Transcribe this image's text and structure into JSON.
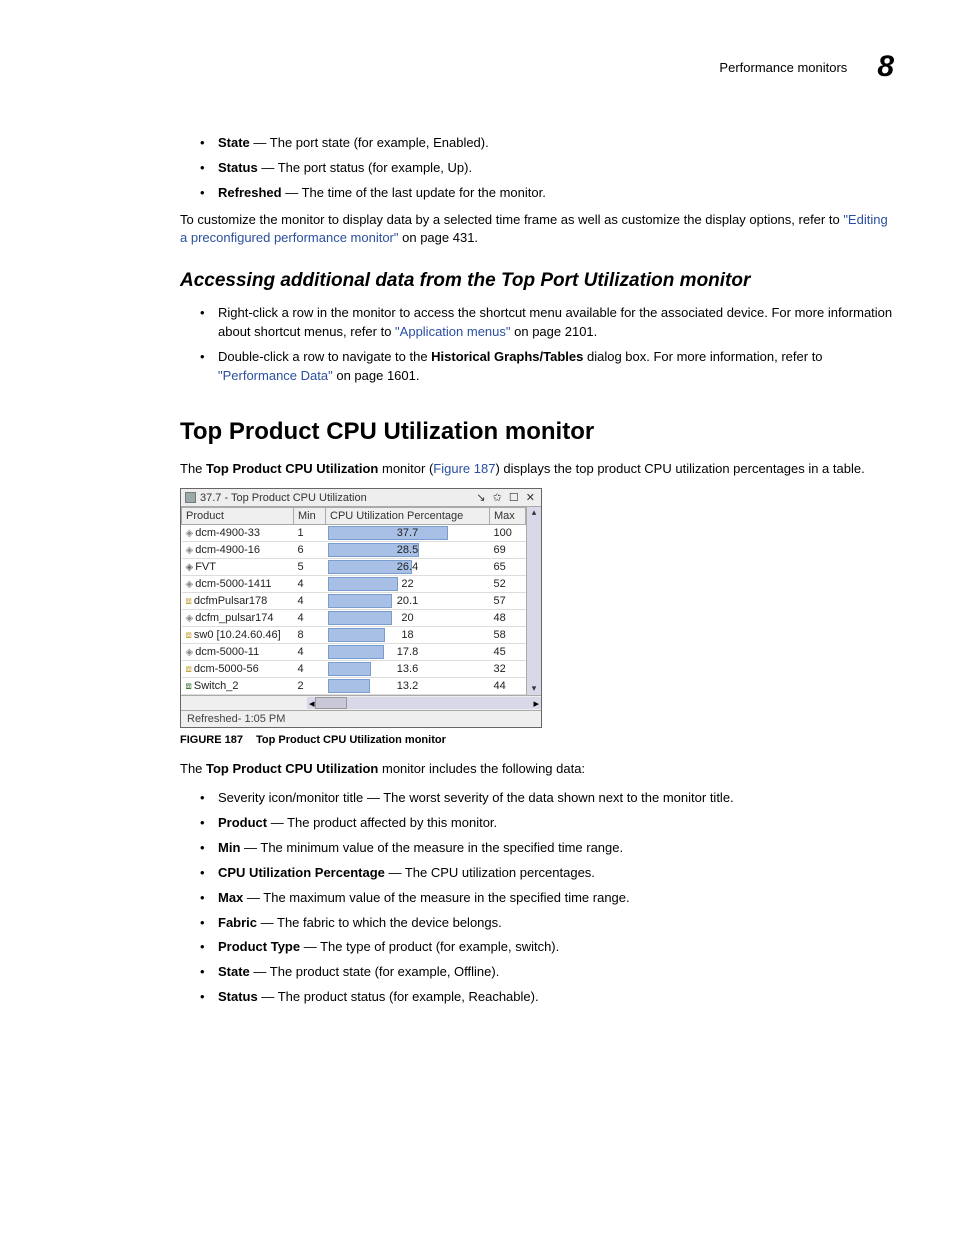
{
  "header": {
    "section_title": "Performance monitors",
    "chapter_num": "8"
  },
  "top_bullets": [
    {
      "term": "State",
      "def": " — The port state (for example, Enabled)."
    },
    {
      "term": "Status",
      "def": " — The port status (for example, Up)."
    },
    {
      "term": "Refreshed",
      "def": " — The time of the last update for the monitor."
    }
  ],
  "customize_para": {
    "pre": "To customize the monitor to display data by a selected time frame as well as customize the display options, refer to ",
    "link": "\"Editing a preconfigured performance monitor\"",
    "post": " on page 431."
  },
  "subhead": "Accessing additional data from the Top Port Utilization monitor",
  "access_bullets": {
    "b1_pre": "Right-click a row in the monitor to access the shortcut menu available for the associated device. For more information about shortcut menus, refer to ",
    "b1_link": "\"Application menus\"",
    "b1_post": " on page 2101.",
    "b2_pre": "Double-click a row to navigate to the ",
    "b2_bold": "Historical Graphs/Tables",
    "b2_mid": " dialog box. For more information, refer to ",
    "b2_link": "\"Performance Data\"",
    "b2_post": " on page 1601."
  },
  "section_title": "Top Product CPU Utilization monitor",
  "intro_para": {
    "pre": "The ",
    "bold": "Top Product CPU Utilization",
    "mid": " monitor (",
    "link": "Figure 187",
    "post": ") displays the top product CPU utilization percentages in a table."
  },
  "monitor": {
    "title": "37.7 - Top Product CPU Utilization",
    "controls": "↘ ✩ ☐ ✕",
    "columns": [
      "Product",
      "Min",
      "CPU Utilization Percentage",
      "Max"
    ],
    "rows": [
      {
        "icon": "◈",
        "icon_color": "#888",
        "product": "dcm-4900-33",
        "min": "1",
        "pct": 37.7,
        "label": "37.7",
        "max": "100"
      },
      {
        "icon": "◈",
        "icon_color": "#888",
        "product": "dcm-4900-16",
        "min": "6",
        "pct": 28.5,
        "label": "28.5",
        "max": "69"
      },
      {
        "icon": "◈",
        "icon_color": "#666",
        "product": "FVT",
        "min": "5",
        "pct": 26.4,
        "label": "26.4",
        "max": "65"
      },
      {
        "icon": "◈",
        "icon_color": "#888",
        "product": "dcm-5000-1411",
        "min": "4",
        "pct": 22,
        "label": "22",
        "max": "52"
      },
      {
        "icon": "⧈",
        "icon_color": "#c7a23a",
        "product": "dcfmPulsar178",
        "min": "4",
        "pct": 20.1,
        "label": "20.1",
        "max": "57"
      },
      {
        "icon": "◈",
        "icon_color": "#888",
        "product": "dcfm_pulsar174",
        "min": "4",
        "pct": 20,
        "label": "20",
        "max": "48"
      },
      {
        "icon": "⧈",
        "icon_color": "#c7a23a",
        "product": "sw0 [10.24.60.46]",
        "min": "8",
        "pct": 18,
        "label": "18",
        "max": "58"
      },
      {
        "icon": "◈",
        "icon_color": "#888",
        "product": "dcm-5000-11",
        "min": "4",
        "pct": 17.8,
        "label": "17.8",
        "max": "45"
      },
      {
        "icon": "⧈",
        "icon_color": "#c7a23a",
        "product": "dcm-5000-56",
        "min": "4",
        "pct": 13.6,
        "label": "13.6",
        "max": "32"
      },
      {
        "icon": "⧈",
        "icon_color": "#3a7a3a",
        "product": "Switch_2",
        "min": "2",
        "pct": 13.2,
        "label": "13.2",
        "max": "44"
      }
    ],
    "bar_scale_max": 50,
    "bar_fill_color": "#a8c0e6",
    "bar_border_color": "#7a9dd0",
    "refreshed": "Refreshed- 1:05 PM"
  },
  "figure": {
    "num": "FIGURE 187",
    "title": "Top Product CPU Utilization monitor"
  },
  "data_intro": {
    "pre": "The ",
    "bold": "Top Product CPU Utilization",
    "post": " monitor includes the following data:"
  },
  "data_bullets": [
    {
      "term": "",
      "def": "Severity icon/monitor title — The worst severity of the data shown next to the monitor title."
    },
    {
      "term": "Product",
      "def": " — The product affected by this monitor."
    },
    {
      "term": "Min",
      "def": " — The minimum value of the measure in the specified time range."
    },
    {
      "term": "CPU Utilization Percentage",
      "def": " — The CPU utilization percentages."
    },
    {
      "term": "Max",
      "def": " — The maximum value of the measure in the specified time range."
    },
    {
      "term": "Fabric",
      "def": " — The fabric to which the device belongs."
    },
    {
      "term": "Product Type",
      "def": " — The type of product (for example, switch)."
    },
    {
      "term": "State",
      "def": " — The product state (for example, Offline)."
    },
    {
      "term": "Status",
      "def": " — The product status (for example, Reachable)."
    }
  ]
}
